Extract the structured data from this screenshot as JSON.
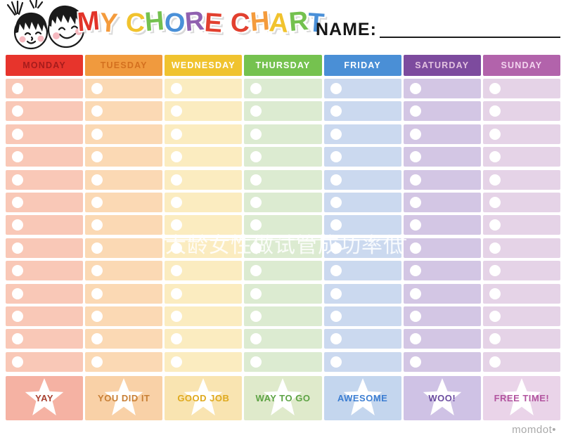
{
  "page": {
    "name_label": "NAME:",
    "watermark_center": "大龄女性做试管成功率低",
    "brand": "momdot•"
  },
  "title_letters": [
    {
      "ch": "M",
      "color": "#e23329"
    },
    {
      "ch": "Y",
      "color": "#f49b3c"
    },
    {
      "ch": " ",
      "color": ""
    },
    {
      "ch": "C",
      "color": "#f1c32e"
    },
    {
      "ch": "H",
      "color": "#74c14f"
    },
    {
      "ch": "O",
      "color": "#4a90d8"
    },
    {
      "ch": "R",
      "color": "#9061b0"
    },
    {
      "ch": "E",
      "color": "#e2402f"
    },
    {
      "ch": " ",
      "color": ""
    },
    {
      "ch": "C",
      "color": "#e2402f"
    },
    {
      "ch": "H",
      "color": "#f49b3c"
    },
    {
      "ch": "A",
      "color": "#f1c32e"
    },
    {
      "ch": "R",
      "color": "#74c14f"
    },
    {
      "ch": "T",
      "color": "#4a90d8"
    }
  ],
  "grid": {
    "rows": 13
  },
  "days": [
    {
      "label": "MONDAY",
      "header_bg": "#e7342c",
      "header_fg": "#a51c1c",
      "cell_bg": "#f9c8b7",
      "footer_bg": "#f5b2a3",
      "footer_fg": "#a8402f",
      "footer_label": "YAY"
    },
    {
      "label": "TUESDAY",
      "header_bg": "#f09a3e",
      "header_fg": "#d4701f",
      "cell_bg": "#fbd9b4",
      "footer_bg": "#f9d1a7",
      "footer_fg": "#c87f35",
      "footer_label": "YOU DID IT"
    },
    {
      "label": "WEDNESDAY",
      "header_bg": "#f0c32f",
      "header_fg": "#ffffff",
      "cell_bg": "#fbecc0",
      "footer_bg": "#f9e4b1",
      "footer_fg": "#dfa91e",
      "footer_label": "GOOD JOB"
    },
    {
      "label": "THURSDAY",
      "header_bg": "#75c24f",
      "header_fg": "#ffffff",
      "cell_bg": "#dcebd1",
      "footer_bg": "#dfeacb",
      "footer_fg": "#5da344",
      "footer_label": "WAY TO GO"
    },
    {
      "label": "FRIDAY",
      "header_bg": "#4a8fd6",
      "header_fg": "#ffffff",
      "cell_bg": "#cbd9ef",
      "footer_bg": "#c4d6ee",
      "footer_fg": "#3c7ed2",
      "footer_label": "AWESOME"
    },
    {
      "label": "SATURDAY",
      "header_bg": "#7d4b9e",
      "header_fg": "#e3c2e0",
      "cell_bg": "#d3c6e4",
      "footer_bg": "#cfc2e5",
      "footer_fg": "#6a4b9f",
      "footer_label": "WOO!"
    },
    {
      "label": "SUNDAY",
      "header_bg": "#b263ab",
      "header_fg": "#f3d4ef",
      "cell_bg": "#e5d3e7",
      "footer_bg": "#ead4e9",
      "footer_fg": "#b2549f",
      "footer_label": "FREE TIME!"
    }
  ]
}
